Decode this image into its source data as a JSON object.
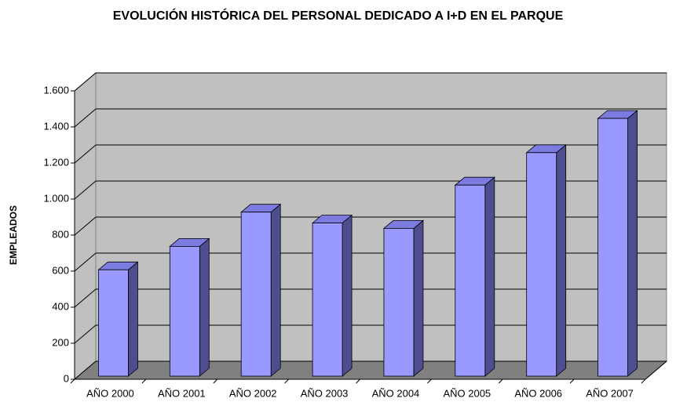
{
  "chart_data": {
    "type": "bar3d",
    "title": "EVOLUCIÓN HISTÓRICA DEL PERSONAL DEDICADO A I+D EN EL PARQUE",
    "y_label": "EMPLEADOS",
    "categories": [
      "AÑO 2000",
      "AÑO 2001",
      "AÑO 2002",
      "AÑO 2003",
      "AÑO 2004",
      "AÑO 2005",
      "AÑO 2006",
      "AÑO 2007"
    ],
    "values": [
      590,
      720,
      910,
      850,
      820,
      1060,
      1240,
      1430
    ],
    "color": "#9999ff",
    "ylim": [
      0,
      1600
    ],
    "yticks": [
      0,
      200,
      400,
      600,
      800,
      {
        "value": 1000,
        "label": "1.000"
      },
      {
        "value": 1200,
        "label": "1.200"
      },
      {
        "value": 1400,
        "label": "1.400"
      },
      {
        "value": 1600,
        "label": "1.600"
      }
    ],
    "grid": true
  }
}
